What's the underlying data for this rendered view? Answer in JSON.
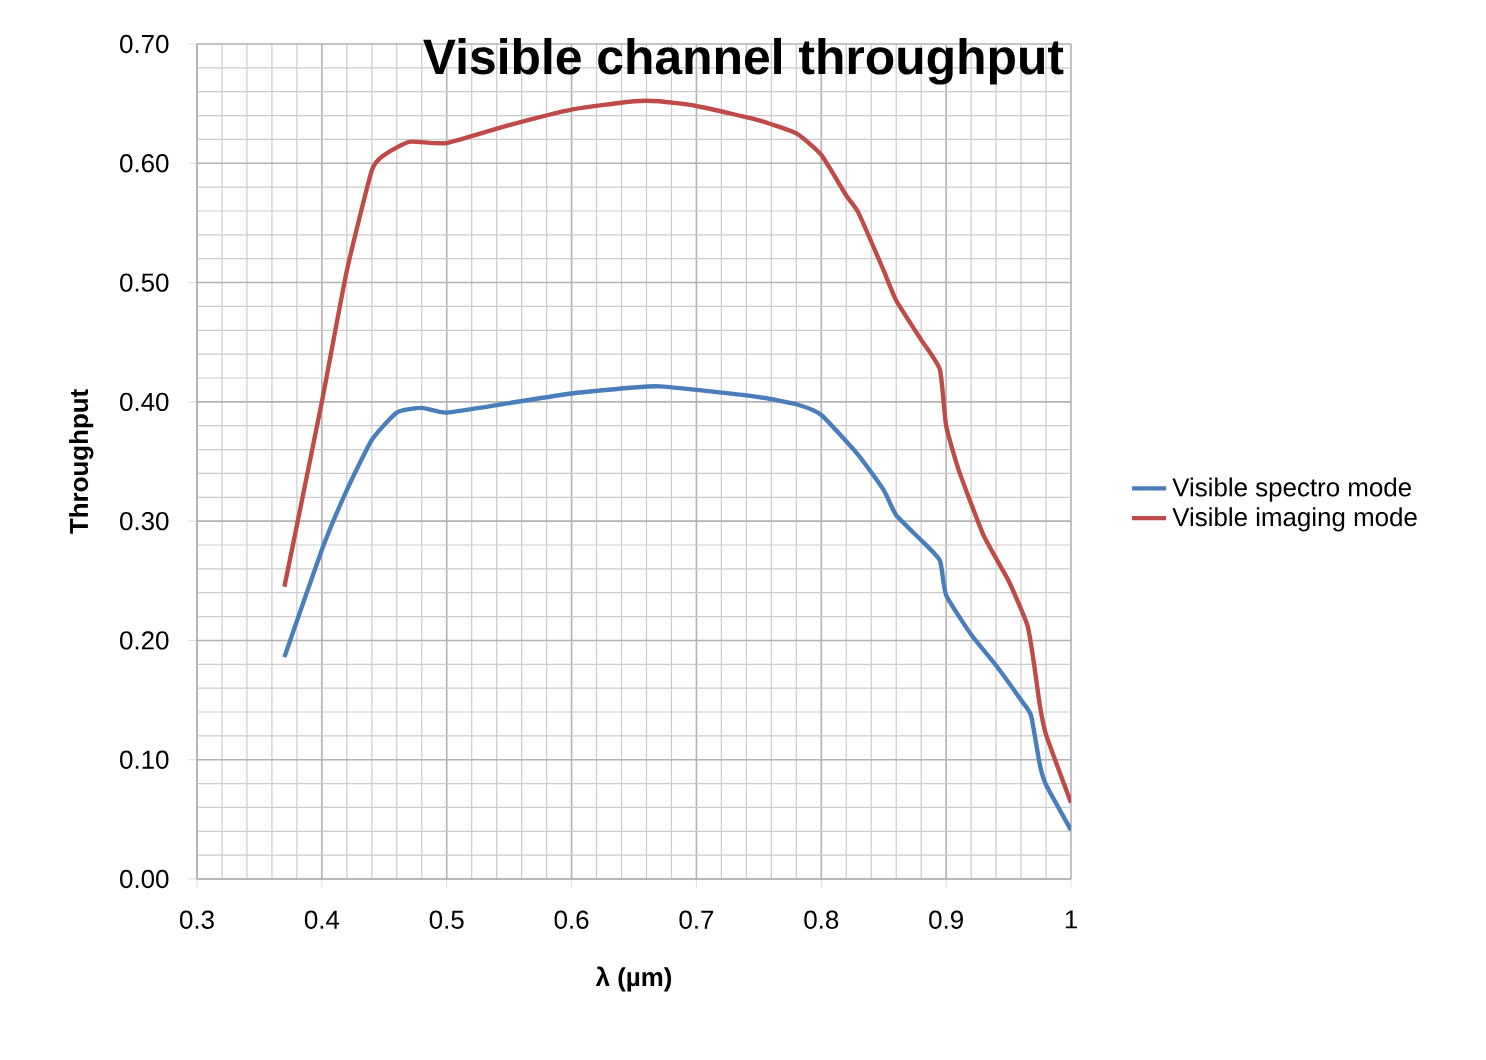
{
  "chart_data": {
    "type": "line",
    "title": "Visible channel throughput",
    "xlabel": "λ (µm)",
    "ylabel": "Throughput",
    "xlim": [
      0.3,
      1
    ],
    "ylim": [
      0,
      0.7
    ],
    "xticks": [
      0.3,
      0.4,
      0.5,
      0.6,
      0.7,
      0.8,
      0.9,
      1
    ],
    "yticks": [
      {
        "value": 0,
        "label": "0.00"
      },
      {
        "value": 0.1,
        "label": "0.10"
      },
      {
        "value": 0.2,
        "label": "0.20"
      },
      {
        "value": 0.3,
        "label": "0.30"
      },
      {
        "value": 0.4,
        "label": "0.40"
      },
      {
        "value": 0.5,
        "label": "0.50"
      },
      {
        "value": 0.6,
        "label": "0.60"
      },
      {
        "value": 0.7,
        "label": "0.70"
      }
    ],
    "grid": true,
    "legend": "right",
    "marker": "none",
    "line_style": "solid",
    "series": [
      {
        "name": "Visible spectro mode",
        "color": "#4a7ebb",
        "x": [
          0.37,
          0.4,
          0.42,
          0.44,
          0.46,
          0.48,
          0.5,
          0.55,
          0.6,
          0.65,
          0.67,
          0.7,
          0.75,
          0.78,
          0.8,
          0.83,
          0.85,
          0.86,
          0.88,
          0.895,
          0.9,
          0.92,
          0.94,
          0.96,
          0.968,
          0.975,
          0.98,
          1.0
        ],
        "values": [
          0.186,
          0.276,
          0.326,
          0.368,
          0.391,
          0.395,
          0.391,
          0.399,
          0.407,
          0.412,
          0.413,
          0.41,
          0.404,
          0.398,
          0.389,
          0.355,
          0.326,
          0.305,
          0.284,
          0.267,
          0.238,
          0.205,
          0.179,
          0.15,
          0.137,
          0.096,
          0.079,
          0.041
        ]
      },
      {
        "name": "Visible imaging mode",
        "color": "#be4b48",
        "x": [
          0.37,
          0.4,
          0.42,
          0.44,
          0.45,
          0.47,
          0.5,
          0.55,
          0.6,
          0.65,
          0.67,
          0.7,
          0.75,
          0.78,
          0.8,
          0.82,
          0.83,
          0.85,
          0.86,
          0.88,
          0.895,
          0.9,
          0.91,
          0.93,
          0.95,
          0.965,
          0.97,
          0.975,
          0.98,
          1.0
        ],
        "values": [
          0.245,
          0.4,
          0.51,
          0.594,
          0.607,
          0.618,
          0.617,
          0.632,
          0.645,
          0.652,
          0.652,
          0.648,
          0.636,
          0.625,
          0.607,
          0.573,
          0.558,
          0.51,
          0.485,
          0.452,
          0.427,
          0.38,
          0.343,
          0.288,
          0.25,
          0.213,
          0.183,
          0.146,
          0.121,
          0.064
        ]
      }
    ]
  }
}
